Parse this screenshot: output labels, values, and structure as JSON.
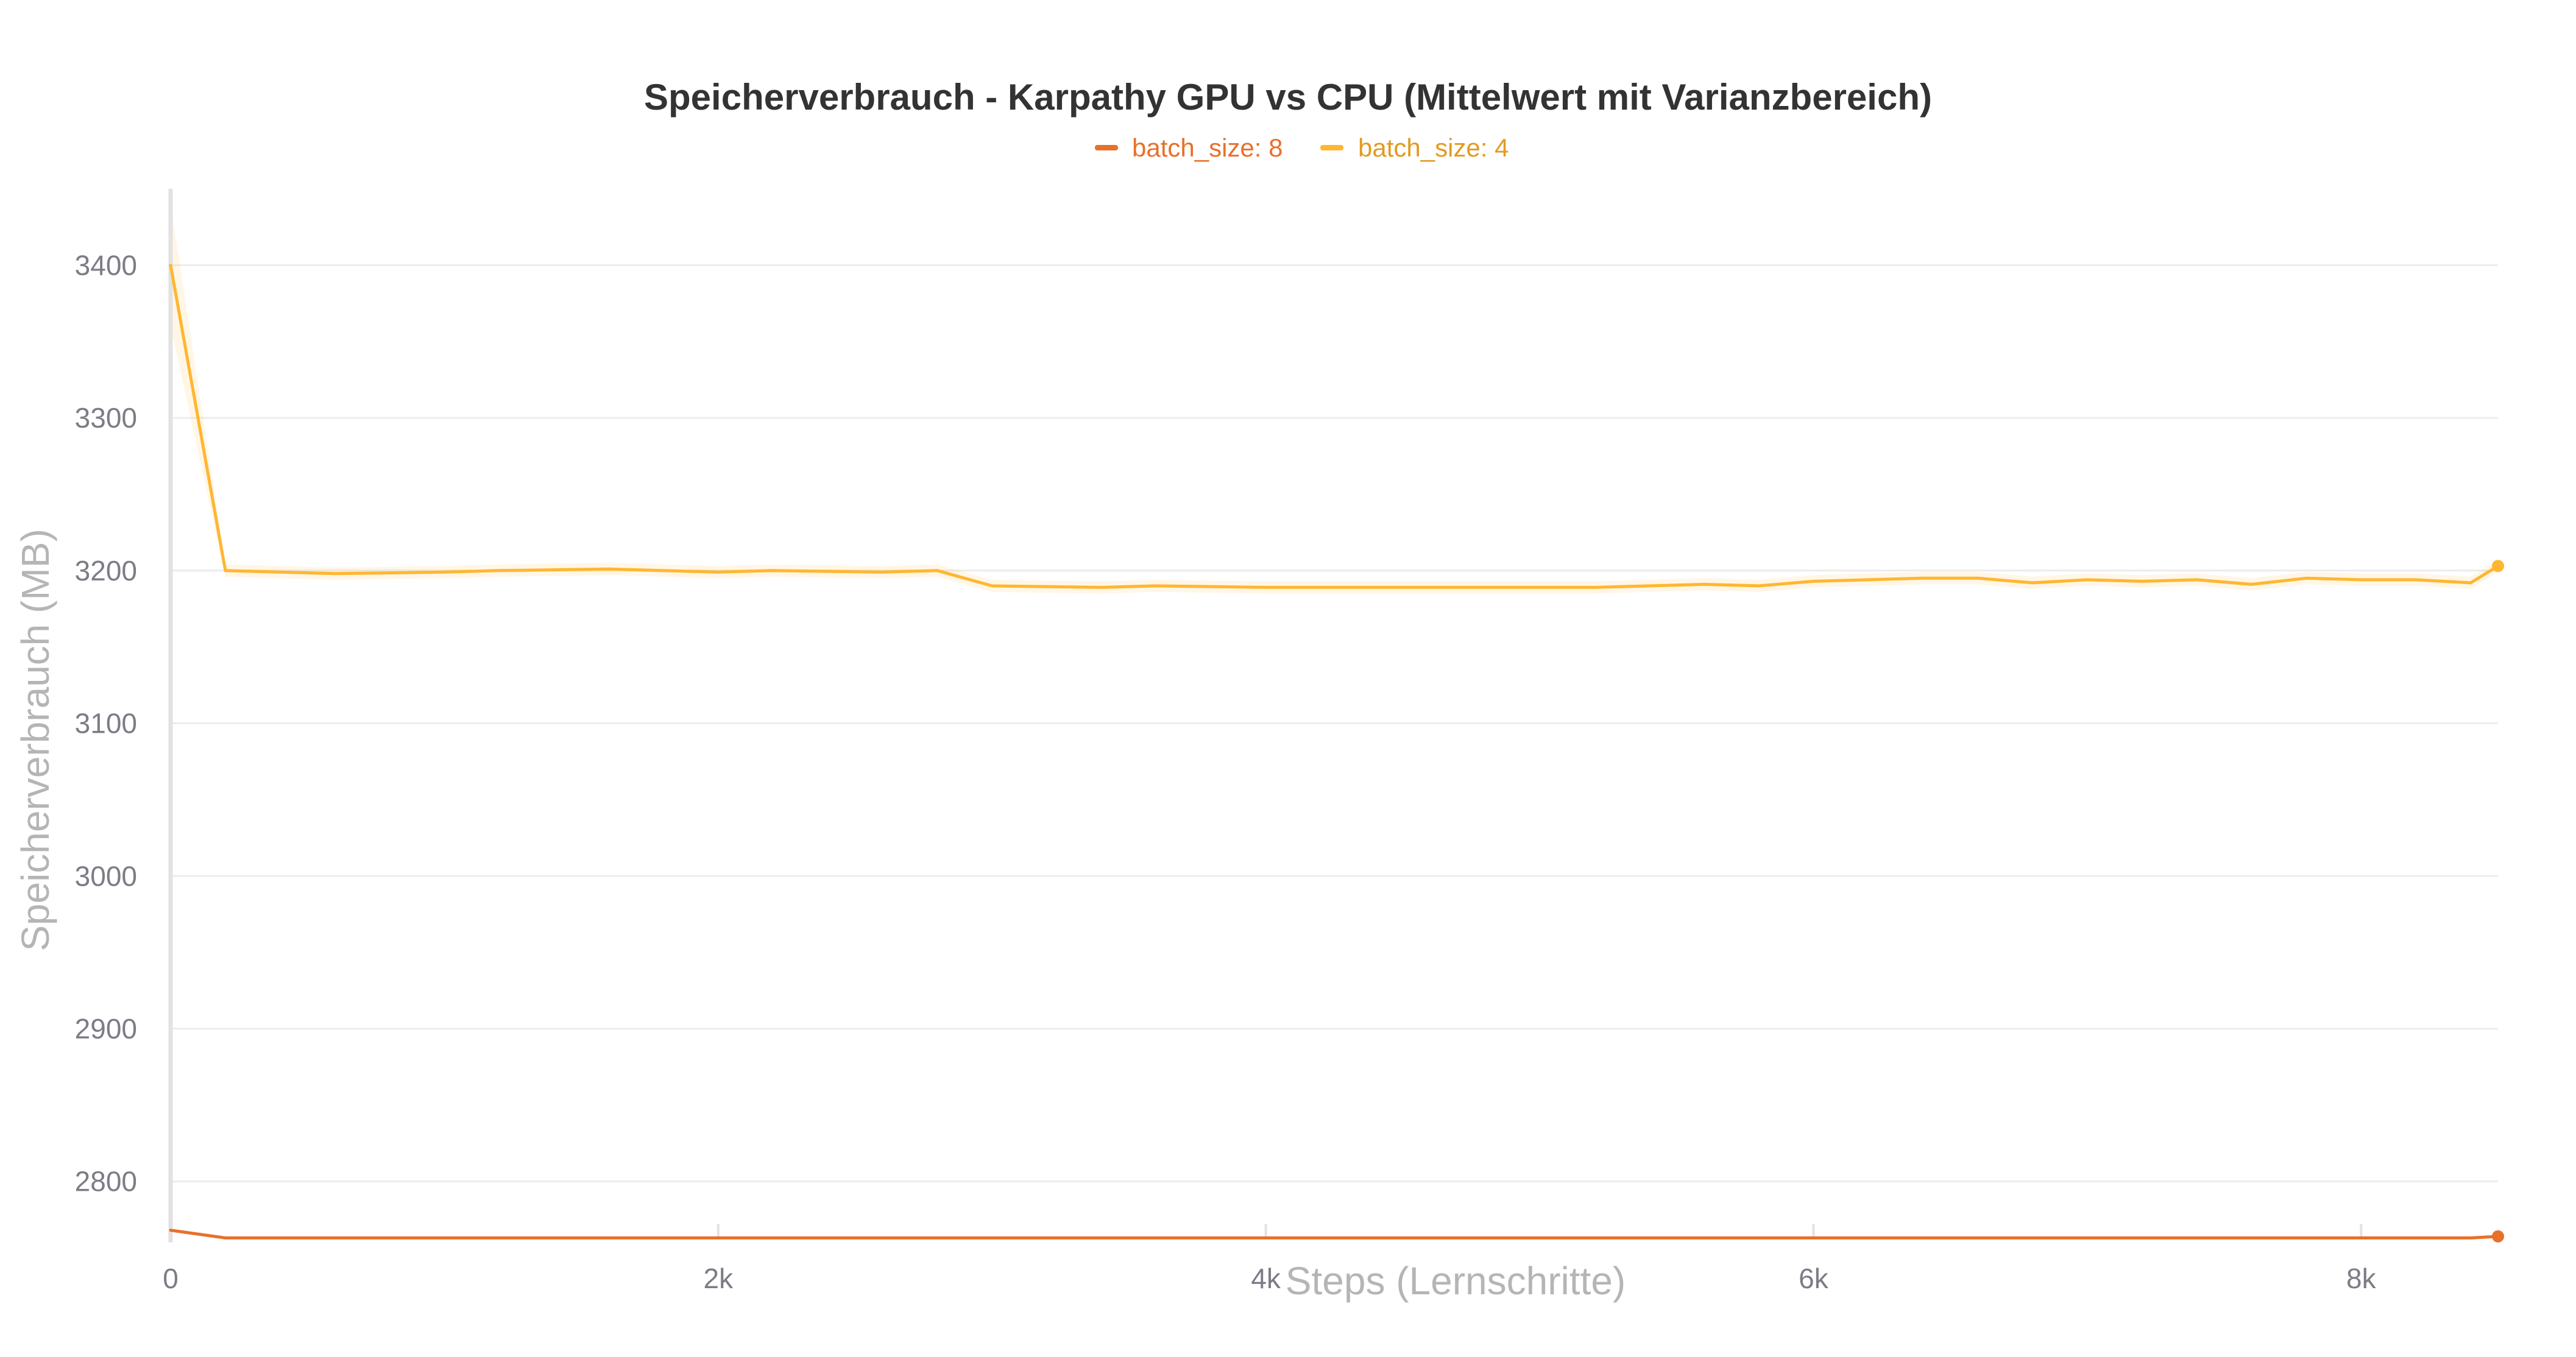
{
  "chart_data": {
    "type": "line",
    "title": "Speicherverbrauch - Karpathy GPU vs CPU (Mittelwert mit Varianzbereich)",
    "xlabel": "Steps (Lernschritte)",
    "ylabel": "Speicherverbrauch (MB)",
    "xlim": [
      0,
      8500
    ],
    "ylim": [
      2760,
      3450
    ],
    "x_ticks": [
      0,
      2000,
      4000,
      6000,
      8000
    ],
    "x_tick_labels": [
      "0",
      "2k",
      "4k",
      "6k",
      "8k"
    ],
    "y_ticks": [
      2800,
      2900,
      3000,
      3100,
      3200,
      3300,
      3400
    ],
    "y_tick_labels": [
      "2800",
      "2900",
      "3000",
      "3100",
      "3200",
      "3300",
      "3400"
    ],
    "grid": true,
    "legend_position": "top-center",
    "series": [
      {
        "name": "batch_size: 8",
        "color": "#e8702a",
        "x": [
          0,
          200,
          400,
          800,
          1200,
          1600,
          2000,
          2400,
          2800,
          3200,
          3600,
          4000,
          4400,
          4800,
          5200,
          5600,
          6000,
          6400,
          6800,
          7200,
          7600,
          8000,
          8400,
          8500
        ],
        "y": [
          2768,
          2763,
          2763,
          2763,
          2763,
          2763,
          2763,
          2763,
          2763,
          2763,
          2763,
          2763,
          2763,
          2763,
          2763,
          2763,
          2763,
          2763,
          2763,
          2763,
          2763,
          2763,
          2763,
          2764
        ],
        "band": 1
      },
      {
        "name": "batch_size: 4",
        "color": "#ffb631",
        "x": [
          0,
          200,
          600,
          1000,
          1200,
          1600,
          2000,
          2200,
          2600,
          2800,
          3000,
          3400,
          3600,
          4000,
          4400,
          4800,
          5200,
          5600,
          5800,
          6000,
          6400,
          6600,
          6800,
          7000,
          7200,
          7400,
          7600,
          7800,
          8000,
          8200,
          8400,
          8500
        ],
        "y": [
          3400,
          3200,
          3198,
          3199,
          3200,
          3201,
          3199,
          3200,
          3199,
          3200,
          3190,
          3189,
          3190,
          3189,
          3189,
          3189,
          3189,
          3191,
          3190,
          3193,
          3195,
          3195,
          3192,
          3194,
          3193,
          3194,
          3191,
          3195,
          3194,
          3194,
          3192,
          3203
        ],
        "band": 4,
        "band_start": 40
      }
    ]
  }
}
